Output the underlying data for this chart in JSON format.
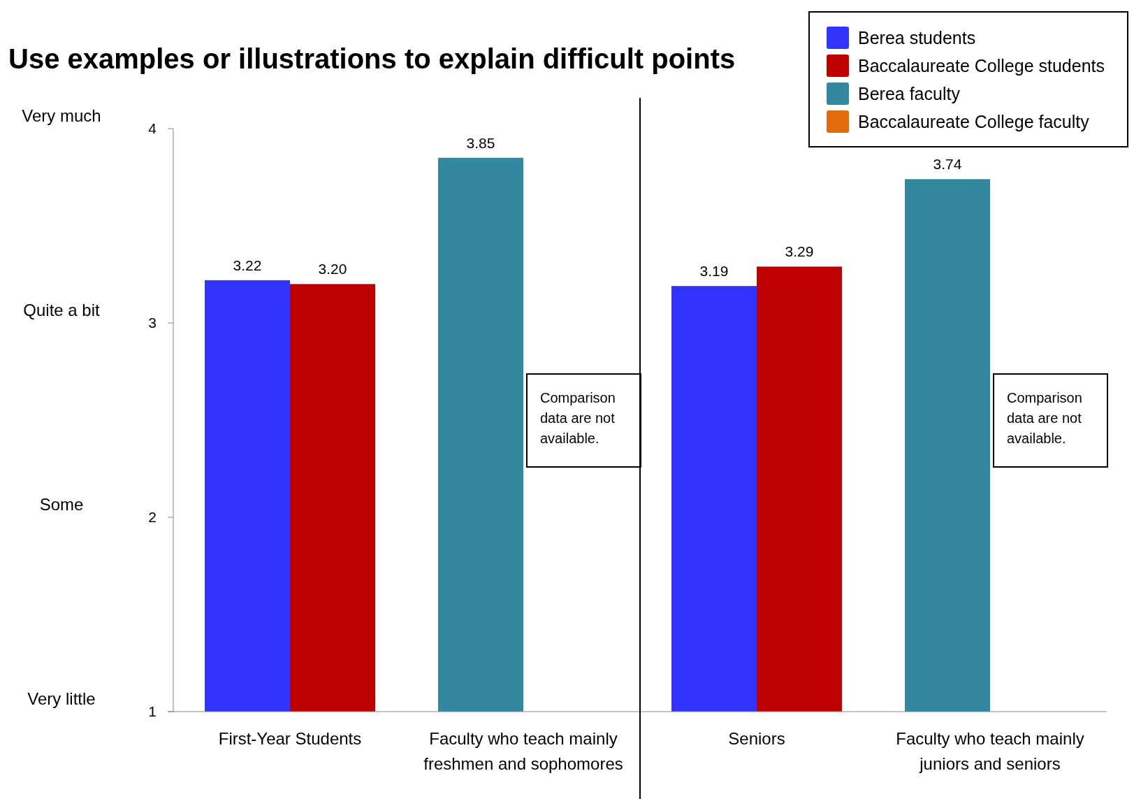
{
  "chart_data": {
    "type": "bar",
    "title": "Use examples or illustrations to explain difficult points",
    "categories": [
      "First-Year Students",
      "Faculty who teach mainly freshmen and sophomores",
      "Seniors",
      "Faculty who teach mainly juniors and seniors"
    ],
    "series": [
      {
        "name": "Berea students",
        "color": "#3333ff",
        "values": [
          3.22,
          null,
          3.19,
          null
        ],
        "value_labels": [
          "3.22",
          null,
          "3.19",
          null
        ]
      },
      {
        "name": "Baccalaureate College students",
        "color": "#c00000",
        "values": [
          3.2,
          null,
          3.29,
          null
        ],
        "value_labels": [
          "3.20",
          null,
          "3.29",
          null
        ]
      },
      {
        "name": "Berea faculty",
        "color": "#33879e",
        "values": [
          null,
          3.85,
          null,
          3.74
        ],
        "value_labels": [
          null,
          "3.85",
          null,
          "3.74"
        ]
      },
      {
        "name": "Baccalaureate College faculty",
        "color": "#e36c0a",
        "values": [
          null,
          null,
          null,
          null
        ]
      }
    ],
    "ylim": [
      1,
      4
    ],
    "yticks": [
      1,
      2,
      3,
      4
    ],
    "legend": "top right",
    "annotations": [
      "Very much",
      "Quite a bit",
      "Some",
      "Very little",
      {
        "text": "Comparison data are not available.",
        "x": "Faculty who teach mainly freshmen and sophomores",
        "y": 2.5
      },
      {
        "text": "Comparison data are not available.",
        "x": "Faculty who teach mainly juniors and seniors",
        "y": 2.5
      }
    ]
  }
}
